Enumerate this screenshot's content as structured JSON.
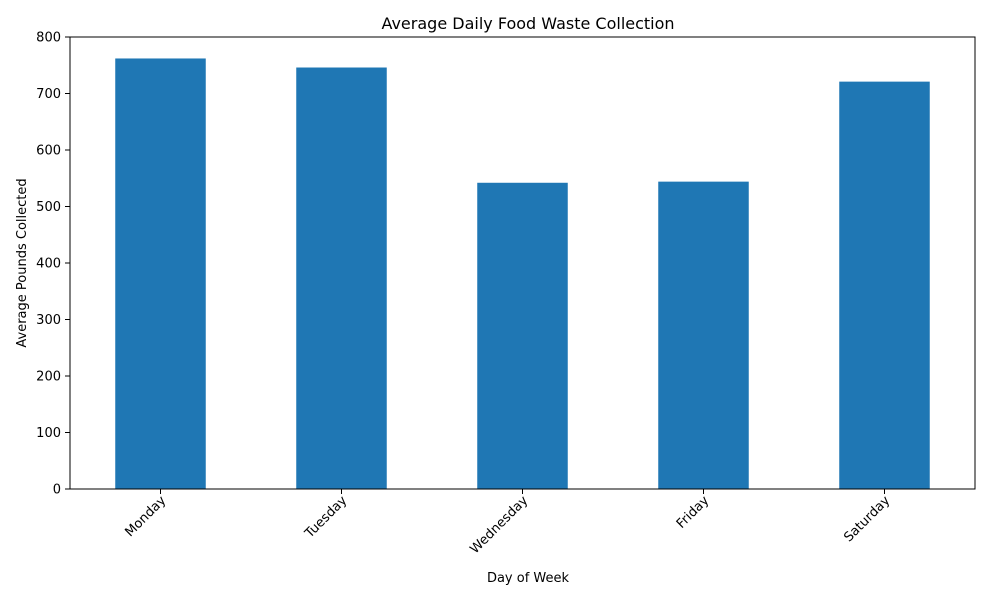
{
  "chart_data": {
    "type": "bar",
    "title": "Average Daily Food Waste Collection",
    "xlabel": "Day of Week",
    "ylabel": "Average Pounds Collected",
    "categories": [
      "Monday",
      "Tuesday",
      "Wednesday",
      "Friday",
      "Saturday"
    ],
    "values": [
      762,
      746,
      542,
      544,
      721
    ],
    "ylim": [
      0,
      800
    ],
    "yticks": [
      0,
      100,
      200,
      300,
      400,
      500,
      600,
      700,
      800
    ],
    "bar_color": "#1f77b4",
    "grid": false,
    "legend": "none"
  }
}
